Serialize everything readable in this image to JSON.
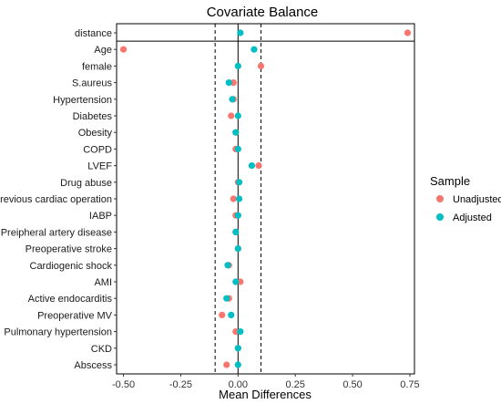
{
  "chart_data": {
    "type": "scatter",
    "title": "Covariate Balance",
    "xlabel": "Mean Differences",
    "ylabel": "",
    "xlim": [
      -0.53,
      0.77
    ],
    "xticks": [
      -0.5,
      -0.25,
      0.0,
      0.25,
      0.5,
      0.75
    ],
    "xtick_labels": [
      "-0.50",
      "-0.25",
      "0.00",
      "0.25",
      "0.50",
      "0.75"
    ],
    "threshold_lines": [
      -0.1,
      0.1
    ],
    "zero_line": 0,
    "grid": false,
    "legend": {
      "title": "Sample",
      "position": "right"
    },
    "categories": [
      "distance",
      "Age",
      "female",
      "S.aureus",
      "Hypertension",
      "Diabetes",
      "Obesity",
      "COPD",
      "LVEF",
      "Drug abuse",
      "Previous cardiac operation",
      "IABP",
      "Preipheral artery disease",
      "Preoperative stroke",
      "Cardiogenic shock",
      "AMI",
      "Active endocarditis",
      "Preoperative MV",
      "Pulmonary hypertension",
      "CKD",
      "Abscess"
    ],
    "series": [
      {
        "name": "Unadjusted",
        "color": "#F8766D",
        "values": [
          0.74,
          -0.5,
          0.1,
          -0.02,
          -0.02,
          -0.03,
          -0.01,
          -0.01,
          0.09,
          0.0,
          -0.02,
          -0.01,
          -0.01,
          0.0,
          -0.04,
          0.01,
          -0.04,
          -0.07,
          -0.01,
          0.0,
          -0.05
        ]
      },
      {
        "name": "Adjusted",
        "color": "#00BFC4",
        "values": [
          0.01,
          0.07,
          0.0,
          -0.04,
          -0.025,
          0.0,
          -0.01,
          0.0,
          0.06,
          0.005,
          0.005,
          0.0,
          -0.01,
          0.0,
          -0.045,
          -0.01,
          -0.05,
          -0.03,
          0.01,
          0.0,
          0.0
        ]
      }
    ]
  }
}
